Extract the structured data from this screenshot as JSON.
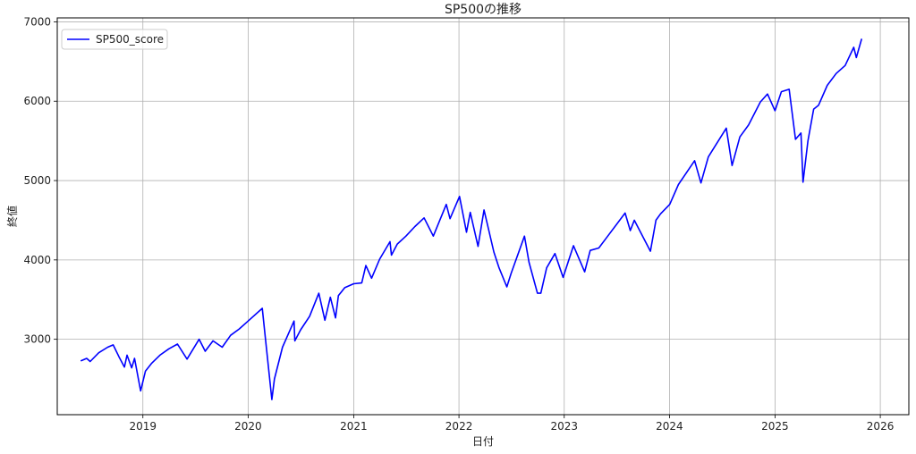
{
  "chart_data": {
    "type": "line",
    "title": "SP500の推移",
    "xlabel": "日付",
    "ylabel": "終値",
    "grid": true,
    "legend_position": "top-left",
    "xlim": [
      "2018-03-10",
      "2026-04-10"
    ],
    "ylim": [
      2050,
      7050
    ],
    "x_ticks": [
      "2019",
      "2020",
      "2021",
      "2022",
      "2023",
      "2024",
      "2025",
      "2026"
    ],
    "y_ticks": [
      3000,
      4000,
      5000,
      6000,
      7000
    ],
    "series": [
      {
        "name": "SP500_score",
        "color": "#0000ff",
        "x": [
          "2018-06-01",
          "2018-06-20",
          "2018-07-02",
          "2018-08-01",
          "2018-09-01",
          "2018-09-20",
          "2018-10-10",
          "2018-10-29",
          "2018-11-07",
          "2018-11-23",
          "2018-12-03",
          "2018-12-24",
          "2019-01-10",
          "2019-02-01",
          "2019-03-01",
          "2019-04-01",
          "2019-05-01",
          "2019-06-03",
          "2019-07-15",
          "2019-08-05",
          "2019-09-01",
          "2019-10-03",
          "2019-11-01",
          "2019-12-01",
          "2020-01-01",
          "2020-02-19",
          "2020-03-01",
          "2020-03-23",
          "2020-04-01",
          "2020-04-29",
          "2020-06-08",
          "2020-06-11",
          "2020-07-01",
          "2020-08-01",
          "2020-09-02",
          "2020-09-23",
          "2020-10-12",
          "2020-10-30",
          "2020-11-09",
          "2020-12-01",
          "2021-01-01",
          "2021-01-29",
          "2021-02-12",
          "2021-03-04",
          "2021-04-01",
          "2021-05-07",
          "2021-05-12",
          "2021-06-01",
          "2021-07-01",
          "2021-08-01",
          "2021-09-02",
          "2021-10-04",
          "2021-11-18",
          "2021-12-01",
          "2022-01-03",
          "2022-01-27",
          "2022-02-09",
          "2022-03-08",
          "2022-03-29",
          "2022-05-02",
          "2022-05-20",
          "2022-06-16",
          "2022-07-01",
          "2022-08-16",
          "2022-09-01",
          "2022-09-30",
          "2022-10-12",
          "2022-11-01",
          "2022-11-30",
          "2022-12-28",
          "2023-02-02",
          "2023-03-13",
          "2023-04-01",
          "2023-05-01",
          "2023-06-01",
          "2023-07-31",
          "2023-08-18",
          "2023-09-01",
          "2023-10-27",
          "2023-11-15",
          "2023-12-01",
          "2024-01-02",
          "2024-02-01",
          "2024-03-28",
          "2024-04-19",
          "2024-05-15",
          "2024-07-16",
          "2024-08-05",
          "2024-09-01",
          "2024-10-01",
          "2024-11-11",
          "2024-12-06",
          "2025-01-01",
          "2025-01-23",
          "2025-02-19",
          "2025-03-13",
          "2025-04-01",
          "2025-04-08",
          "2025-04-25",
          "2025-05-15",
          "2025-06-01",
          "2025-07-01",
          "2025-08-01",
          "2025-09-01",
          "2025-10-01",
          "2025-10-10",
          "2025-10-28"
        ],
        "y": [
          2730,
          2760,
          2720,
          2830,
          2900,
          2930,
          2780,
          2650,
          2800,
          2640,
          2760,
          2350,
          2600,
          2700,
          2800,
          2880,
          2940,
          2750,
          3000,
          2850,
          2980,
          2900,
          3050,
          3130,
          3230,
          3390,
          3000,
          2240,
          2500,
          2900,
          3230,
          2980,
          3120,
          3290,
          3580,
          3240,
          3530,
          3270,
          3550,
          3650,
          3700,
          3710,
          3930,
          3770,
          4010,
          4230,
          4060,
          4200,
          4300,
          4420,
          4530,
          4300,
          4700,
          4520,
          4800,
          4350,
          4600,
          4170,
          4630,
          4100,
          3900,
          3660,
          3830,
          4300,
          3970,
          3580,
          3580,
          3900,
          4080,
          3780,
          4180,
          3850,
          4120,
          4150,
          4300,
          4590,
          4370,
          4500,
          4110,
          4500,
          4580,
          4700,
          4950,
          5250,
          4970,
          5300,
          5660,
          5190,
          5550,
          5700,
          5990,
          6090,
          5880,
          6120,
          6150,
          5520,
          5600,
          4980,
          5500,
          5900,
          5950,
          6200,
          6350,
          6450,
          6680,
          6550,
          6780
        ]
      }
    ]
  }
}
